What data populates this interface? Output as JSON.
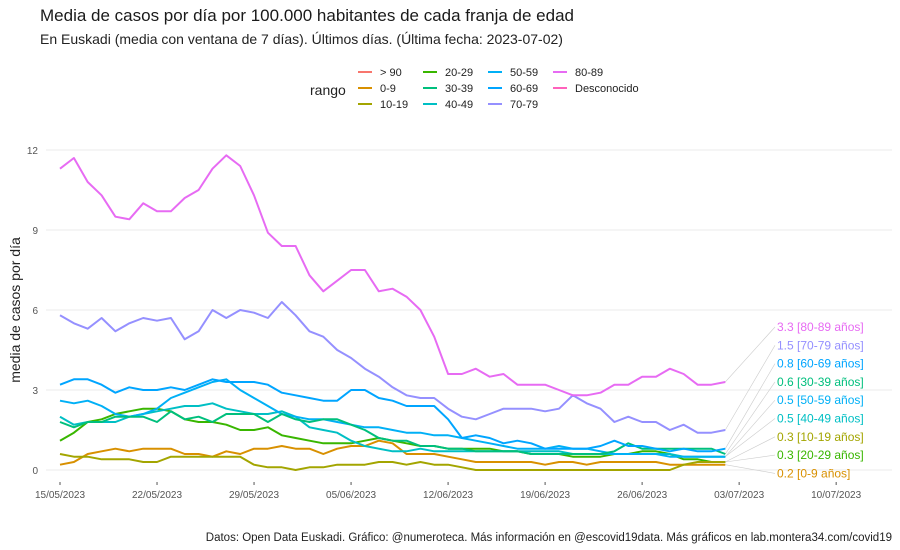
{
  "header": {
    "title": "Media de casos por día por 100.000 habitantes de cada franja de edad",
    "subtitle": "En Euskadi (media con ventana de 7 días). Últimos días.  (Última fecha: 2023-07-02)"
  },
  "legend": {
    "title": "rango",
    "items": [
      {
        "label": "> 90",
        "color": "#f8766d"
      },
      {
        "label": "0-9",
        "color": "#d89000"
      },
      {
        "label": "10-19",
        "color": "#a3a500"
      },
      {
        "label": "20-29",
        "color": "#39b600"
      },
      {
        "label": "30-39",
        "color": "#00bf7d"
      },
      {
        "label": "40-49",
        "color": "#00bfc4"
      },
      {
        "label": "50-59",
        "color": "#00b0f6"
      },
      {
        "label": "60-69",
        "color": "#00a5ff"
      },
      {
        "label": "70-79",
        "color": "#9590ff"
      },
      {
        "label": "80-89",
        "color": "#e76bf3"
      },
      {
        "label": "Desconocido",
        "color": "#ff62bc"
      }
    ]
  },
  "caption": "Datos: Open Data Euskadi. Gráfico: @numeroteca. Más información en @escovid19data.  Más gráficos en lab.montera34.com/covid19",
  "chart_data": {
    "type": "line",
    "title": "Media de casos por día por 100.000 habitantes de cada franja de edad",
    "xlabel": "",
    "ylabel": "media de casos por día",
    "x_start": "2023-05-15",
    "x_end": "2023-07-02",
    "xlim_days": [
      -1,
      57
    ],
    "ylim": [
      -0.3,
      12.4
    ],
    "y_ticks": [
      0,
      3,
      6,
      9,
      12
    ],
    "y_tick_labels": [
      "0",
      "3",
      "6",
      "9",
      "12"
    ],
    "x_ticks_days": [
      0,
      7,
      14,
      21,
      28,
      35,
      42,
      49,
      56
    ],
    "x_tick_labels": [
      "15/05/2023",
      "22/05/2023",
      "29/05/2023",
      "05/06/2023",
      "12/06/2023",
      "19/06/2023",
      "26/06/2023",
      "03/07/2023",
      "10/07/2023"
    ],
    "grid": true,
    "series": [
      {
        "name": "80-89",
        "color": "#e76bf3",
        "end_label": "3.3 [80-89 años]",
        "values": [
          11.3,
          11.7,
          10.8,
          10.3,
          9.5,
          9.4,
          10.0,
          9.7,
          9.7,
          10.2,
          10.5,
          11.3,
          11.8,
          11.4,
          10.3,
          8.9,
          8.4,
          8.4,
          7.3,
          6.7,
          7.1,
          7.5,
          7.5,
          6.7,
          6.8,
          6.5,
          6.0,
          5.0,
          3.6,
          3.6,
          3.8,
          3.5,
          3.6,
          3.2,
          3.2,
          3.2,
          3.0,
          2.8,
          2.8,
          2.9,
          3.2,
          3.2,
          3.5,
          3.5,
          3.8,
          3.6,
          3.2,
          3.2,
          3.3
        ]
      },
      {
        "name": "70-79",
        "color": "#9590ff",
        "end_label": "1.5 [70-79 años]",
        "values": [
          5.8,
          5.5,
          5.3,
          5.7,
          5.2,
          5.5,
          5.7,
          5.6,
          5.7,
          4.9,
          5.2,
          6.0,
          5.7,
          6.0,
          5.9,
          5.7,
          6.3,
          5.8,
          5.2,
          5.0,
          4.5,
          4.2,
          3.8,
          3.5,
          3.1,
          2.8,
          2.7,
          2.7,
          2.3,
          2.0,
          1.9,
          2.1,
          2.3,
          2.3,
          2.3,
          2.2,
          2.3,
          2.8,
          2.5,
          2.3,
          1.8,
          2.0,
          1.8,
          1.8,
          1.5,
          1.7,
          1.4,
          1.4,
          1.5
        ]
      },
      {
        "name": "60-69",
        "color": "#00a5ff",
        "end_label": "0.8 [60-69 años]",
        "values": [
          3.2,
          3.4,
          3.4,
          3.2,
          2.9,
          3.1,
          3.0,
          3.0,
          3.1,
          3.0,
          3.2,
          3.4,
          3.3,
          3.3,
          3.3,
          3.2,
          2.9,
          2.8,
          2.7,
          2.6,
          2.6,
          3.0,
          3.0,
          2.7,
          2.6,
          2.4,
          2.4,
          2.4,
          1.9,
          1.2,
          1.3,
          1.2,
          1.0,
          1.1,
          1.0,
          0.8,
          0.8,
          0.8,
          0.8,
          0.9,
          1.1,
          0.9,
          0.9,
          0.8,
          0.7,
          0.8,
          0.7,
          0.7,
          0.8
        ]
      },
      {
        "name": "30-39",
        "color": "#00bf7d",
        "end_label": "0.6 [30-39 años]",
        "values": [
          1.8,
          1.6,
          1.8,
          1.8,
          2.0,
          2.0,
          2.0,
          1.8,
          2.2,
          1.9,
          2.0,
          1.8,
          2.1,
          2.1,
          2.1,
          1.8,
          2.1,
          1.9,
          1.8,
          1.9,
          1.9,
          1.7,
          1.5,
          1.2,
          1.1,
          1.1,
          0.9,
          0.9,
          0.8,
          0.8,
          0.7,
          0.7,
          0.7,
          0.7,
          0.6,
          0.6,
          0.6,
          0.6,
          0.6,
          0.6,
          0.7,
          1.0,
          0.8,
          0.8,
          0.8,
          0.8,
          0.8,
          0.8,
          0.6
        ]
      },
      {
        "name": "50-59",
        "color": "#00b0f6",
        "end_label": "0.5 [50-59 años]",
        "values": [
          2.6,
          2.5,
          2.6,
          2.4,
          2.1,
          2.0,
          2.1,
          2.3,
          2.7,
          2.9,
          3.1,
          3.3,
          3.4,
          3.0,
          2.7,
          2.4,
          2.1,
          2.0,
          1.9,
          1.9,
          1.8,
          1.7,
          1.6,
          1.6,
          1.5,
          1.4,
          1.4,
          1.3,
          1.3,
          1.2,
          1.1,
          1.0,
          0.9,
          0.8,
          0.8,
          0.8,
          0.9,
          0.8,
          0.8,
          0.7,
          0.6,
          0.6,
          0.6,
          0.6,
          0.5,
          0.5,
          0.5,
          0.5,
          0.5
        ]
      },
      {
        "name": "40-49",
        "color": "#00bfc4",
        "end_label": "0.5 [40-49 años]",
        "values": [
          2.0,
          1.7,
          1.8,
          1.8,
          1.8,
          2.0,
          2.1,
          2.2,
          2.3,
          2.4,
          2.4,
          2.5,
          2.3,
          2.2,
          2.1,
          2.1,
          2.2,
          2.0,
          1.6,
          1.5,
          1.4,
          1.1,
          0.9,
          0.8,
          0.7,
          0.7,
          0.8,
          0.7,
          0.7,
          0.7,
          0.7,
          0.7,
          0.7,
          0.7,
          0.7,
          0.7,
          0.7,
          0.6,
          0.6,
          0.6,
          0.6,
          0.6,
          0.6,
          0.6,
          0.6,
          0.5,
          0.5,
          0.5,
          0.5
        ]
      },
      {
        "name": "10-19",
        "color": "#a3a500",
        "end_label": "0.3 [10-19 años]",
        "values": [
          0.6,
          0.5,
          0.5,
          0.4,
          0.4,
          0.4,
          0.3,
          0.3,
          0.5,
          0.5,
          0.5,
          0.5,
          0.5,
          0.5,
          0.2,
          0.1,
          0.1,
          0.0,
          0.1,
          0.1,
          0.2,
          0.2,
          0.2,
          0.3,
          0.3,
          0.2,
          0.3,
          0.2,
          0.2,
          0.1,
          0.0,
          0.0,
          0.0,
          0.0,
          0.0,
          0.0,
          0.0,
          0.0,
          0.0,
          0.0,
          0.0,
          0.0,
          0.0,
          0.0,
          0.0,
          0.2,
          0.3,
          0.3,
          0.3
        ]
      },
      {
        "name": "20-29",
        "color": "#39b600",
        "end_label": "0.3 [20-29 años]",
        "values": [
          1.1,
          1.4,
          1.8,
          1.9,
          2.1,
          2.2,
          2.3,
          2.3,
          2.2,
          1.9,
          1.8,
          1.8,
          1.7,
          1.5,
          1.5,
          1.6,
          1.3,
          1.2,
          1.1,
          1.0,
          1.0,
          1.0,
          1.1,
          1.2,
          1.1,
          1.0,
          0.9,
          0.9,
          0.8,
          0.8,
          0.8,
          0.8,
          0.7,
          0.7,
          0.6,
          0.6,
          0.6,
          0.5,
          0.5,
          0.5,
          0.6,
          0.6,
          0.7,
          0.7,
          0.6,
          0.4,
          0.4,
          0.3,
          0.3
        ]
      },
      {
        "name": "0-9",
        "color": "#d89000",
        "end_label": "0.2 [0-9 años]",
        "values": [
          0.2,
          0.3,
          0.6,
          0.7,
          0.8,
          0.7,
          0.8,
          0.8,
          0.8,
          0.6,
          0.6,
          0.5,
          0.7,
          0.6,
          0.8,
          0.8,
          0.9,
          0.8,
          0.8,
          0.6,
          0.8,
          0.9,
          0.9,
          1.1,
          1.0,
          0.6,
          0.6,
          0.6,
          0.5,
          0.4,
          0.3,
          0.3,
          0.3,
          0.3,
          0.3,
          0.2,
          0.3,
          0.3,
          0.2,
          0.3,
          0.3,
          0.3,
          0.3,
          0.3,
          0.2,
          0.2,
          0.2,
          0.2,
          0.2
        ]
      }
    ]
  }
}
